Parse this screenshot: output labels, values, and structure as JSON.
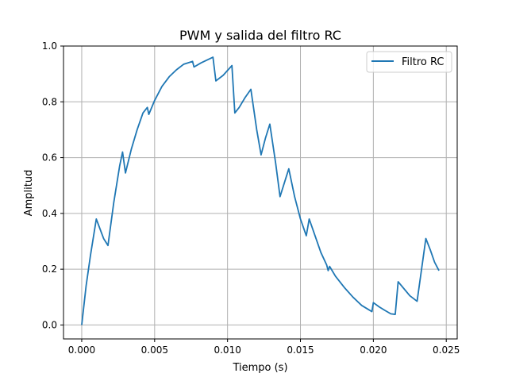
{
  "chart_data": {
    "type": "line",
    "title": "PWM y salida del filtro RC",
    "xlabel": "Tiempo (s)",
    "ylabel": "Amplitud",
    "xlim": [
      -0.00125,
      0.02575
    ],
    "ylim": [
      -0.05,
      1.0
    ],
    "xticks": [
      0.0,
      0.005,
      0.01,
      0.015,
      0.02,
      0.025
    ],
    "xtick_labels": [
      "0.000",
      "0.005",
      "0.010",
      "0.015",
      "0.020",
      "0.025"
    ],
    "yticks": [
      0.0,
      0.2,
      0.4,
      0.6,
      0.8,
      1.0
    ],
    "ytick_labels": [
      "0.0",
      "0.2",
      "0.4",
      "0.6",
      "0.8",
      "1.0"
    ],
    "grid": true,
    "legend_position": "top-right",
    "series": [
      {
        "name": "Filtro RC",
        "color": "#1f77b4",
        "x": [
          0.0,
          0.0003,
          0.0006,
          0.001,
          0.0015,
          0.0018,
          0.0022,
          0.0026,
          0.0028,
          0.003,
          0.0034,
          0.0038,
          0.0042,
          0.0045,
          0.0046,
          0.005,
          0.0055,
          0.006,
          0.0065,
          0.007,
          0.0076,
          0.0077,
          0.0082,
          0.0086,
          0.009,
          0.0092,
          0.0097,
          0.0103,
          0.0105,
          0.0108,
          0.0112,
          0.0116,
          0.012,
          0.0123,
          0.0126,
          0.0129,
          0.0133,
          0.0136,
          0.0139,
          0.0142,
          0.0146,
          0.015,
          0.0154,
          0.0156,
          0.016,
          0.0164,
          0.0168,
          0.0169,
          0.017,
          0.0174,
          0.018,
          0.0186,
          0.0192,
          0.0199,
          0.02,
          0.0204,
          0.0208,
          0.0212,
          0.0215,
          0.0217,
          0.0221,
          0.0225,
          0.023,
          0.0236,
          0.0239,
          0.0242,
          0.0245
        ],
        "y": [
          0.0,
          0.14,
          0.25,
          0.38,
          0.31,
          0.285,
          0.44,
          0.57,
          0.62,
          0.545,
          0.63,
          0.7,
          0.76,
          0.78,
          0.755,
          0.805,
          0.855,
          0.89,
          0.915,
          0.935,
          0.945,
          0.925,
          0.94,
          0.95,
          0.96,
          0.875,
          0.895,
          0.93,
          0.76,
          0.78,
          0.815,
          0.845,
          0.7,
          0.61,
          0.67,
          0.72,
          0.58,
          0.46,
          0.51,
          0.56,
          0.46,
          0.38,
          0.32,
          0.38,
          0.32,
          0.26,
          0.215,
          0.195,
          0.21,
          0.175,
          0.135,
          0.1,
          0.07,
          0.048,
          0.08,
          0.065,
          0.052,
          0.04,
          0.038,
          0.155,
          0.13,
          0.105,
          0.085,
          0.31,
          0.27,
          0.225,
          0.195
        ]
      }
    ]
  }
}
